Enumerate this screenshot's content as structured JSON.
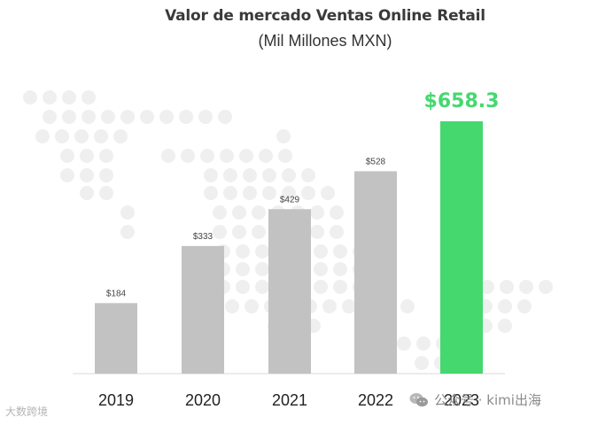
{
  "chart_data": {
    "type": "bar",
    "title": "Valor de mercado Ventas Online Retail",
    "subtitle": "(Mil Millones MXN)",
    "categories": [
      "2019",
      "2020",
      "2021",
      "2022",
      "2023"
    ],
    "series": [
      {
        "values": [
          184,
          333,
          429,
          528,
          658.3
        ],
        "labels": [
          "$184",
          "$333",
          "$429",
          "$528",
          "$658.3"
        ]
      }
    ],
    "ylim": [
      0,
      658.3
    ],
    "grid": false,
    "colors": {
      "bar": "#c2c2c2",
      "highlight": "#45d86f",
      "label": "#444444",
      "axis": "#d9d9d9",
      "dots": "#efefef"
    }
  },
  "watermarks": {
    "left": "大数跨境",
    "right": "公众号 · kimi出海"
  }
}
